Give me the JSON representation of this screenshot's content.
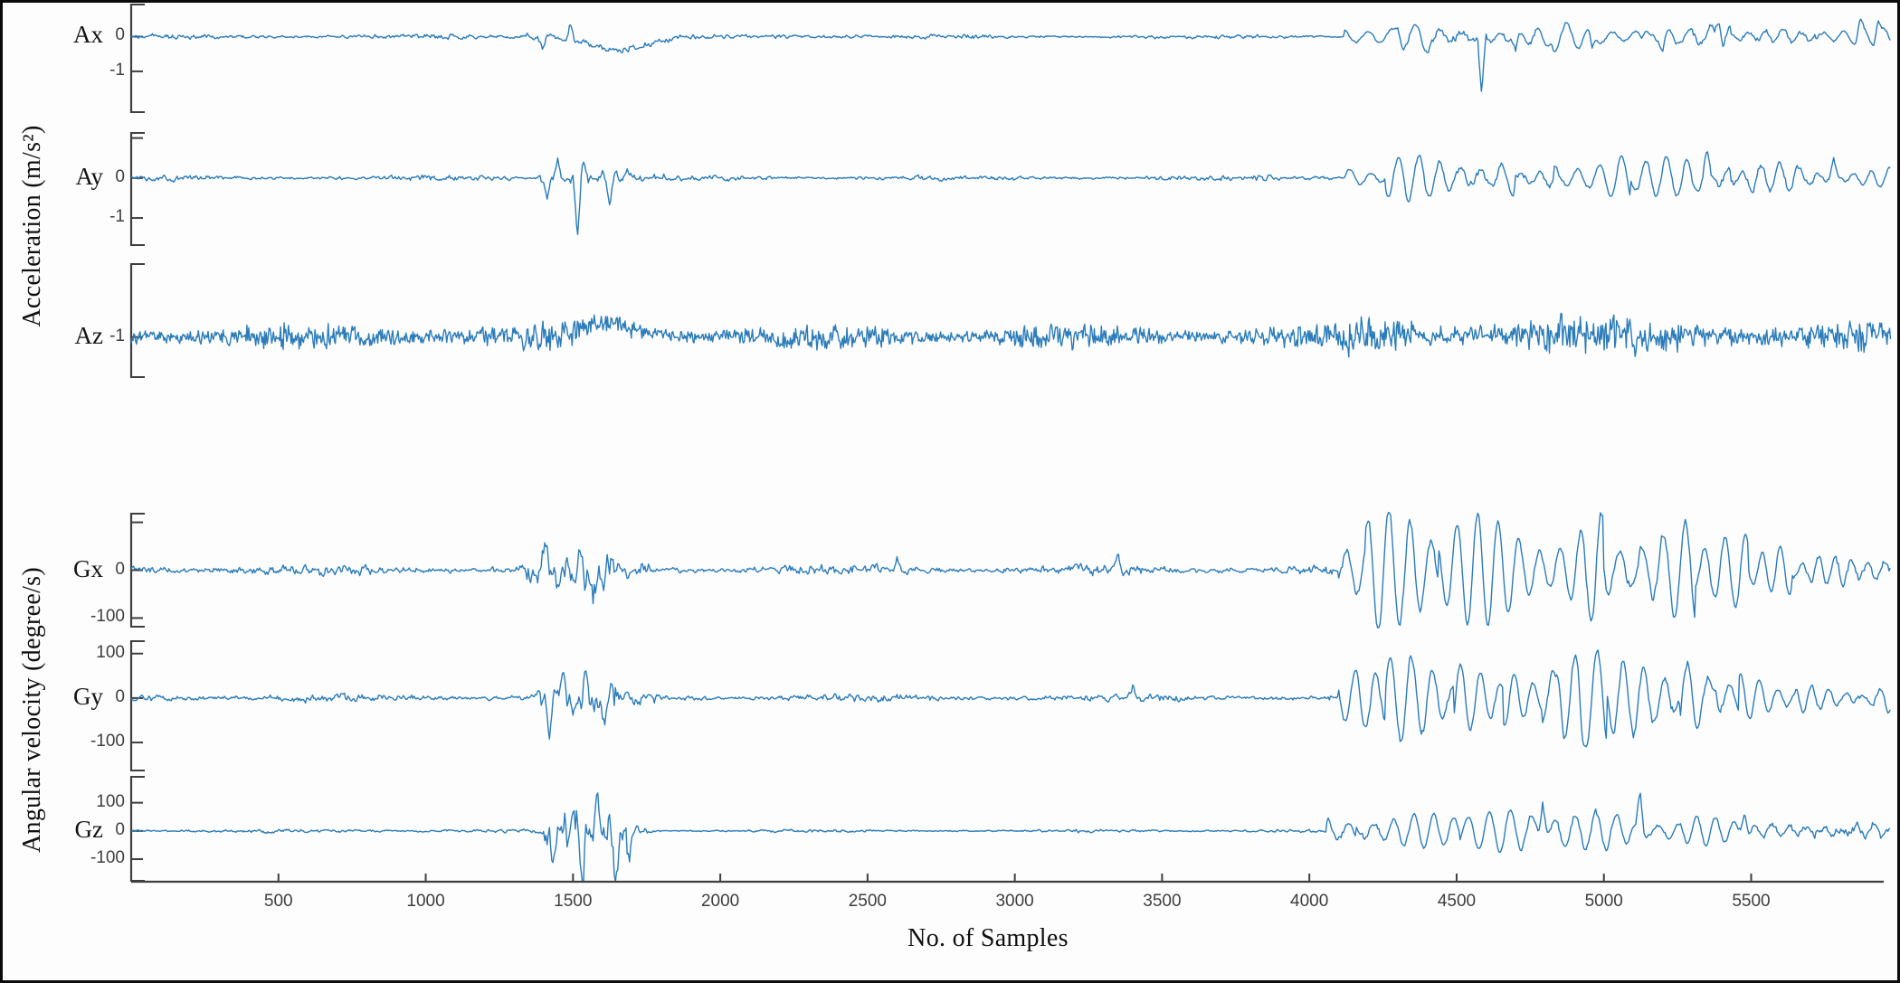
{
  "figure": {
    "background": "#fdfdfd",
    "border_color": "#0b0b0b",
    "axis_color": "#3f3f3f",
    "line_color": "#2b7cba"
  },
  "chart_data": {
    "type": "line",
    "xlabel": "No. of Samples",
    "ylabel_acceleration": "Acceleration (m/s²)",
    "ylabel_angular": "Angular velocity (degree/s)",
    "x_range": [
      0,
      5950
    ],
    "grid": false,
    "legend": false,
    "xticks": [
      {
        "v": 500,
        "t": "500"
      },
      {
        "v": 1000,
        "t": "1000"
      },
      {
        "v": 1500,
        "t": "1500"
      },
      {
        "v": 2000,
        "t": "2000"
      },
      {
        "v": 2500,
        "t": "2500"
      },
      {
        "v": 3000,
        "t": "3000"
      },
      {
        "v": 3500,
        "t": "3500"
      },
      {
        "v": 4000,
        "t": "4000"
      },
      {
        "v": 4500,
        "t": "4500"
      },
      {
        "v": 5000,
        "t": "5000"
      },
      {
        "v": 5500,
        "t": "5500"
      }
    ],
    "panels": [
      {
        "id": "ax",
        "label": "Ax",
        "unit": "m/s²",
        "seed": 7,
        "ylim": [
          -2.2,
          0.95
        ],
        "baseline": 0,
        "yticks": [
          {
            "v": 0,
            "t": "0"
          },
          {
            "v": -1,
            "t": "-1"
          }
        ],
        "segments": [
          [
            0,
            1340,
            0,
            0.1,
            0,
            0
          ],
          [
            1340,
            1430,
            0,
            0.3,
            0,
            0
          ],
          [
            1430,
            1540,
            -0.12,
            0.35,
            0,
            0
          ],
          [
            1540,
            1720,
            -0.38,
            0.22,
            0,
            0
          ],
          [
            1720,
            1820,
            -0.12,
            0.14,
            0,
            0
          ],
          [
            1820,
            2150,
            0,
            0.09,
            0,
            0
          ],
          [
            2150,
            2520,
            0,
            0.13,
            0,
            0
          ],
          [
            2520,
            4120,
            0,
            0.09,
            0,
            0
          ],
          [
            4120,
            4420,
            0,
            0.12,
            0.42,
            80
          ],
          [
            4420,
            4620,
            0,
            0.15,
            0.28,
            70
          ],
          [
            4620,
            4820,
            0,
            0.16,
            0.22,
            65
          ],
          [
            4820,
            5130,
            0,
            0.13,
            0.38,
            78
          ],
          [
            5130,
            5430,
            0,
            0.16,
            0.27,
            72
          ],
          [
            5430,
            5720,
            0,
            0.13,
            0.15,
            60
          ],
          [
            5720,
            5980,
            0,
            0.12,
            0.22,
            68
          ]
        ],
        "spikes": [
          [
            1395,
            -0.35
          ],
          [
            1490,
            0.45
          ],
          [
            4300,
            0.3
          ],
          [
            4585,
            -1.85
          ],
          [
            4700,
            -0.4
          ],
          [
            4960,
            -0.5
          ],
          [
            5200,
            -0.45
          ],
          [
            5390,
            0.75
          ],
          [
            5870,
            0.4
          ],
          [
            5930,
            0.5
          ]
        ]
      },
      {
        "id": "ay",
        "label": "Ay",
        "unit": "m/s²",
        "seed": 13,
        "ylim": [
          -1.7,
          1.15
        ],
        "baseline": 0,
        "yticks": [
          {
            "v": 1,
            "t": ""
          },
          {
            "v": 0,
            "t": "0"
          },
          {
            "v": -1,
            "t": "-1"
          }
        ],
        "segments": [
          [
            0,
            1380,
            0,
            0.1,
            0,
            0
          ],
          [
            1380,
            1490,
            0,
            0.32,
            0,
            0
          ],
          [
            1490,
            1580,
            0,
            0.4,
            0,
            0
          ],
          [
            1580,
            1700,
            0,
            0.32,
            0.12,
            45
          ],
          [
            1700,
            1810,
            0,
            0.16,
            0,
            0
          ],
          [
            1810,
            3780,
            0,
            0.09,
            0,
            0
          ],
          [
            3780,
            3920,
            0,
            0.13,
            0,
            0
          ],
          [
            3920,
            4120,
            0,
            0.1,
            0,
            0
          ],
          [
            4120,
            4260,
            0,
            0.12,
            0.33,
            72
          ],
          [
            4260,
            4700,
            0,
            0.13,
            0.5,
            70
          ],
          [
            4700,
            4830,
            0,
            0.13,
            0.3,
            66
          ],
          [
            4830,
            5090,
            0,
            0.13,
            0.55,
            75
          ],
          [
            5090,
            5430,
            0,
            0.15,
            0.45,
            70
          ],
          [
            5430,
            5660,
            0,
            0.13,
            0.3,
            64
          ],
          [
            5660,
            5980,
            0,
            0.12,
            0.22,
            60
          ]
        ],
        "spikes": [
          [
            1412,
            -0.5
          ],
          [
            1448,
            0.45
          ],
          [
            1515,
            -1.5
          ],
          [
            1538,
            0.5
          ],
          [
            1625,
            -0.55
          ],
          [
            5350,
            0.4
          ],
          [
            5780,
            0.45
          ]
        ]
      },
      {
        "id": "az",
        "label": "Az",
        "unit": "m/s²",
        "seed": 29,
        "texture": "dense",
        "ylim": [
          -2.0,
          0.8
        ],
        "baseline": -1,
        "yticks": [
          {
            "v": -1,
            "t": "-1"
          }
        ],
        "segments": [
          [
            0,
            1430,
            -1,
            0.33,
            0,
            0
          ],
          [
            1430,
            1540,
            -0.85,
            0.33,
            0,
            0
          ],
          [
            1540,
            1670,
            -0.66,
            0.3,
            0,
            0
          ],
          [
            1670,
            1790,
            -0.88,
            0.31,
            0,
            0
          ],
          [
            1790,
            4120,
            -1,
            0.3,
            0,
            0
          ],
          [
            4120,
            4920,
            -0.95,
            0.47,
            0,
            0
          ],
          [
            4920,
            5470,
            -1,
            0.5,
            0,
            0
          ],
          [
            5470,
            5980,
            -1,
            0.34,
            0,
            0
          ]
        ],
        "spikes": []
      },
      {
        "id": "gx",
        "label": "Gx",
        "unit": "degree/s",
        "seed": 41,
        "ylim": [
          -120,
          120
        ],
        "baseline": 0,
        "yticks": [
          {
            "v": 100,
            "t": ""
          },
          {
            "v": 0,
            "t": "0"
          },
          {
            "v": -100,
            "t": "-100"
          }
        ],
        "segments": [
          [
            0,
            1340,
            0,
            16,
            0,
            0
          ],
          [
            1340,
            1490,
            0,
            40,
            0,
            0
          ],
          [
            1490,
            1640,
            0,
            52,
            0,
            0
          ],
          [
            1640,
            1780,
            0,
            30,
            0,
            0
          ],
          [
            1780,
            4100,
            0,
            15,
            0,
            0
          ],
          [
            4100,
            4190,
            0,
            14,
            60,
            72
          ],
          [
            4190,
            4440,
            0,
            15,
            112,
            72
          ],
          [
            4440,
            5000,
            0,
            16,
            105,
            70
          ],
          [
            5000,
            5310,
            0,
            16,
            95,
            74
          ],
          [
            5310,
            5490,
            0,
            15,
            68,
            70
          ],
          [
            5490,
            5640,
            0,
            14,
            45,
            62
          ],
          [
            5640,
            5980,
            0,
            13,
            28,
            56
          ]
        ],
        "spikes": [
          [
            1405,
            55
          ],
          [
            1450,
            -50
          ],
          [
            1525,
            65
          ],
          [
            1565,
            -60
          ],
          [
            2600,
            28
          ],
          [
            3350,
            25
          ]
        ]
      },
      {
        "id": "gy",
        "label": "Gy",
        "unit": "degree/s",
        "seed": 53,
        "ylim": [
          -165,
          130
        ],
        "baseline": 0,
        "yticks": [
          {
            "v": 100,
            "t": "100"
          },
          {
            "v": 0,
            "t": "0"
          },
          {
            "v": -100,
            "t": "-100"
          }
        ],
        "segments": [
          [
            0,
            1380,
            0,
            13,
            0,
            0
          ],
          [
            1380,
            1510,
            0,
            42,
            0,
            0
          ],
          [
            1510,
            1660,
            0,
            48,
            0,
            0
          ],
          [
            1660,
            1790,
            0,
            22,
            0,
            0
          ],
          [
            1790,
            4100,
            0,
            12,
            0,
            0
          ],
          [
            4100,
            4260,
            0,
            13,
            55,
            70
          ],
          [
            4260,
            4490,
            0,
            15,
            85,
            72
          ],
          [
            4490,
            4660,
            0,
            15,
            70,
            68
          ],
          [
            4660,
            4790,
            0,
            15,
            58,
            64
          ],
          [
            4790,
            5010,
            0,
            18,
            95,
            75
          ],
          [
            5010,
            5260,
            0,
            15,
            75,
            70
          ],
          [
            5260,
            5460,
            0,
            15,
            85,
            72
          ],
          [
            5460,
            5660,
            0,
            13,
            50,
            64
          ],
          [
            5660,
            5980,
            0,
            12,
            30,
            58
          ]
        ],
        "spikes": [
          [
            1420,
            -80
          ],
          [
            1468,
            58
          ],
          [
            1545,
            62
          ],
          [
            1605,
            -68
          ],
          [
            3400,
            30
          ],
          [
            4850,
            50
          ],
          [
            4925,
            -55
          ],
          [
            5380,
            42
          ]
        ]
      },
      {
        "id": "gz",
        "label": "Gz",
        "unit": "degree/s",
        "seed": 67,
        "ylim": [
          -180,
          195
        ],
        "baseline": 0,
        "yticks": [
          {
            "v": 100,
            "t": "100"
          },
          {
            "v": 0,
            "t": "0"
          },
          {
            "v": -100,
            "t": "-100"
          }
        ],
        "segments": [
          [
            0,
            1400,
            0,
            10,
            0,
            0
          ],
          [
            1400,
            1470,
            0,
            70,
            0,
            0
          ],
          [
            1470,
            1700,
            0,
            135,
            0,
            0
          ],
          [
            1700,
            1770,
            0,
            35,
            0,
            0
          ],
          [
            1770,
            4060,
            0,
            8,
            0,
            0
          ],
          [
            4060,
            4160,
            0,
            18,
            28,
            70
          ],
          [
            4160,
            4510,
            0,
            18,
            55,
            68
          ],
          [
            4510,
            4810,
            0,
            18,
            66,
            72
          ],
          [
            4810,
            5010,
            0,
            18,
            60,
            70
          ],
          [
            5010,
            5260,
            0,
            18,
            55,
            70
          ],
          [
            5260,
            5460,
            0,
            16,
            45,
            64
          ],
          [
            5460,
            5980,
            0,
            22,
            18,
            58
          ]
        ],
        "spikes": [
          [
            1432,
            -110
          ],
          [
            1502,
            130
          ],
          [
            1532,
            -160
          ],
          [
            1585,
            125
          ],
          [
            1645,
            -150
          ],
          [
            1688,
            -110
          ],
          [
            4792,
            145
          ],
          [
            5123,
            130
          ],
          [
            5478,
            75
          ]
        ]
      }
    ]
  }
}
